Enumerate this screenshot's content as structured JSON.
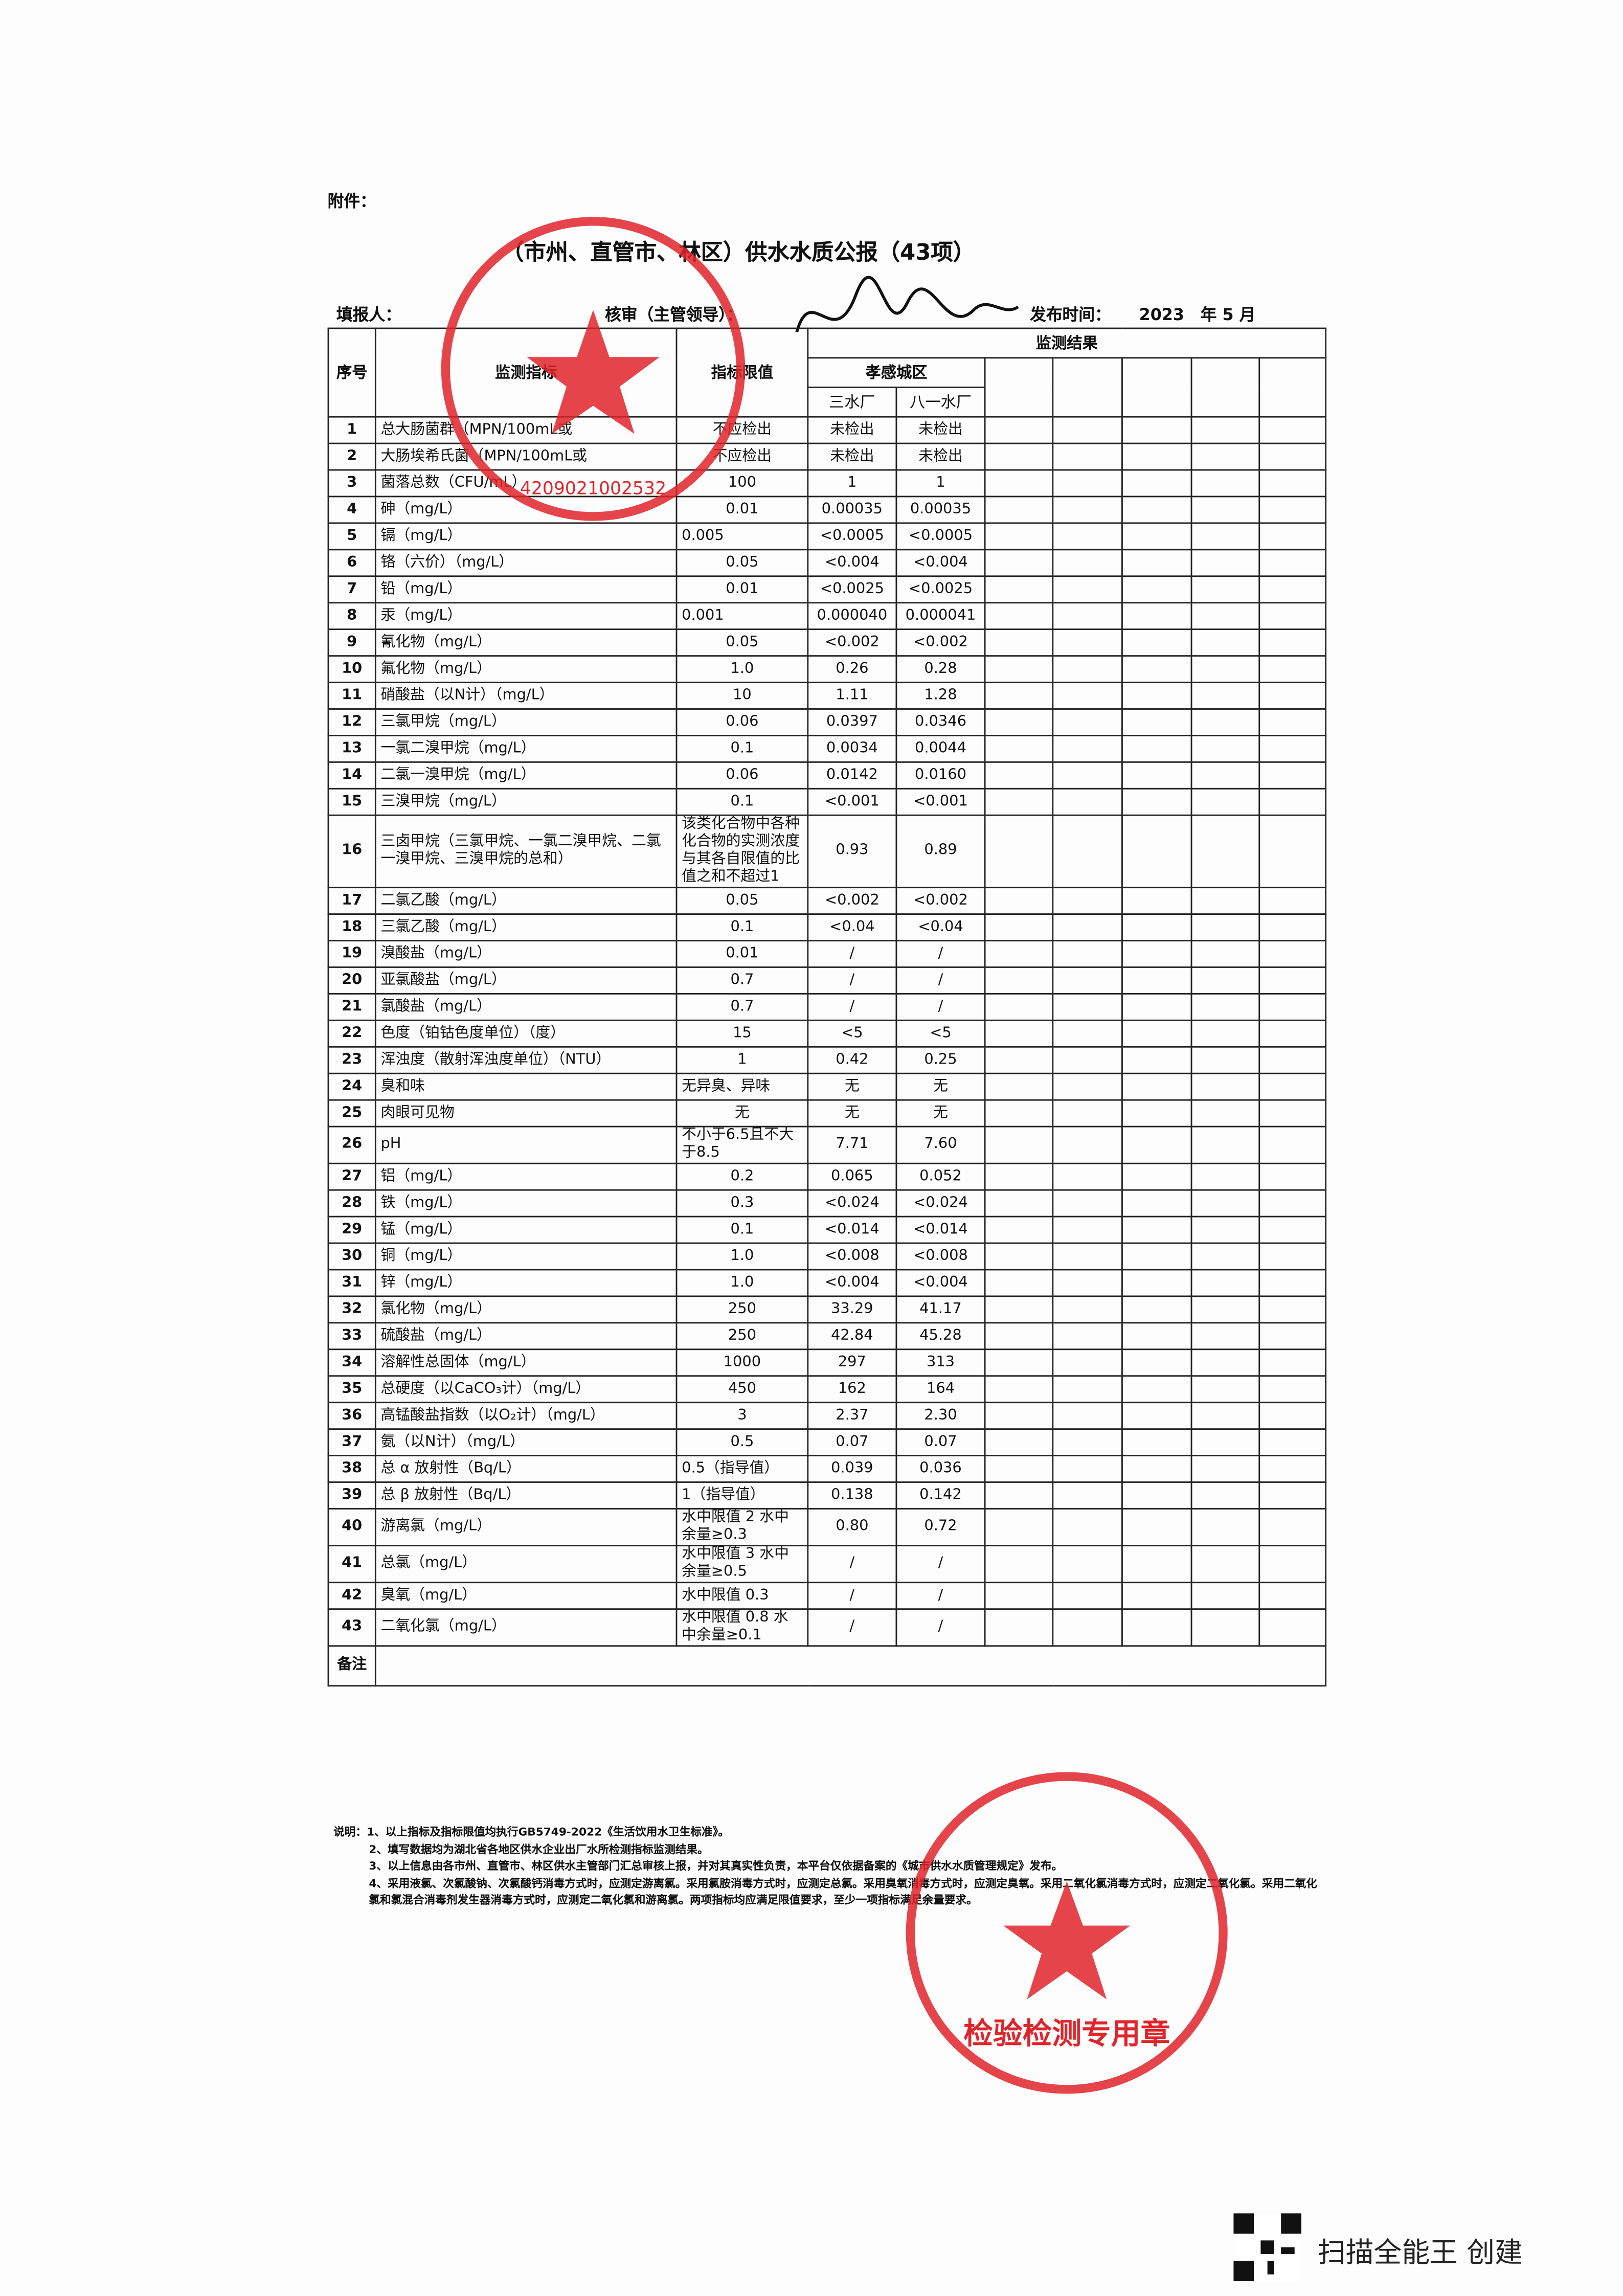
{
  "header": {
    "attachment": "附件：",
    "title": "（市州、直管市、林区）供水水质公报（43项）",
    "filler": "填报人：",
    "reviewer": "核审（主管领导）：",
    "publish_label": "发布时间：",
    "publish_date": "2023　年 5 月"
  },
  "table": {
    "headers": {
      "no": "序号",
      "indicator": "监测指标",
      "limit": "指标限值",
      "results": "监测结果",
      "area": "孝感城区",
      "plant1": "三水厂",
      "plant2": "八一水厂"
    },
    "rows": [
      [
        "1",
        "总大肠菌群（MPN/100mL或",
        "不应检出",
        "未检出",
        "未检出"
      ],
      [
        "2",
        "大肠埃希氏菌（MPN/100mL或",
        "不应检出",
        "未检出",
        "未检出"
      ],
      [
        "3",
        "菌落总数（CFU/mL）",
        "100",
        "1",
        "1"
      ],
      [
        "4",
        "砷（mg/L）",
        "0.01",
        "0.00035",
        "0.00035"
      ],
      [
        "5",
        "镉（mg/L）",
        "0.005",
        "<0.0005",
        "<0.0005"
      ],
      [
        "6",
        "铬（六价）（mg/L）",
        "0.05",
        "<0.004",
        "<0.004"
      ],
      [
        "7",
        "铅（mg/L）",
        "0.01",
        "<0.0025",
        "<0.0025"
      ],
      [
        "8",
        "汞（mg/L）",
        "0.001",
        "0.000040",
        "0.000041"
      ],
      [
        "9",
        "氰化物（mg/L）",
        "0.05",
        "<0.002",
        "<0.002"
      ],
      [
        "10",
        "氟化物（mg/L）",
        "1.0",
        "0.26",
        "0.28"
      ],
      [
        "11",
        "硝酸盐（以N计）（mg/L）",
        "10",
        "1.11",
        "1.28"
      ],
      [
        "12",
        "三氯甲烷（mg/L）",
        "0.06",
        "0.0397",
        "0.0346"
      ],
      [
        "13",
        "一氯二溴甲烷（mg/L）",
        "0.1",
        "0.0034",
        "0.0044"
      ],
      [
        "14",
        "二氯一溴甲烷（mg/L）",
        "0.06",
        "0.0142",
        "0.0160"
      ],
      [
        "15",
        "三溴甲烷（mg/L）",
        "0.1",
        "<0.001",
        "<0.001"
      ],
      [
        "16",
        "三卤甲烷（三氯甲烷、一氯二溴甲烷、二氯一溴甲烷、三溴甲烷的总和）",
        "该类化合物中各种化合物的实测浓度与其各自限值的比值之和不超过1",
        "0.93",
        "0.89"
      ],
      [
        "17",
        "二氯乙酸（mg/L）",
        "0.05",
        "<0.002",
        "<0.002"
      ],
      [
        "18",
        "三氯乙酸（mg/L）",
        "0.1",
        "<0.04",
        "<0.04"
      ],
      [
        "19",
        "溴酸盐（mg/L）",
        "0.01",
        "/",
        "/"
      ],
      [
        "20",
        "亚氯酸盐（mg/L）",
        "0.7",
        "/",
        "/"
      ],
      [
        "21",
        "氯酸盐（mg/L）",
        "0.7",
        "/",
        "/"
      ],
      [
        "22",
        "色度（铂钴色度单位）（度）",
        "15",
        "<5",
        "<5"
      ],
      [
        "23",
        "浑浊度（散射浑浊度单位）（NTU）",
        "1",
        "0.42",
        "0.25"
      ],
      [
        "24",
        "臭和味",
        "无异臭、异味",
        "无",
        "无"
      ],
      [
        "25",
        "肉眼可见物",
        "无",
        "无",
        "无"
      ],
      [
        "26",
        "pH",
        "不小于6.5且不大于8.5",
        "7.71",
        "7.60"
      ],
      [
        "27",
        "铝（mg/L）",
        "0.2",
        "0.065",
        "0.052"
      ],
      [
        "28",
        "铁（mg/L）",
        "0.3",
        "<0.024",
        "<0.024"
      ],
      [
        "29",
        "锰（mg/L）",
        "0.1",
        "<0.014",
        "<0.014"
      ],
      [
        "30",
        "铜（mg/L）",
        "1.0",
        "<0.008",
        "<0.008"
      ],
      [
        "31",
        "锌（mg/L）",
        "1.0",
        "<0.004",
        "<0.004"
      ],
      [
        "32",
        "氯化物（mg/L）",
        "250",
        "33.29",
        "41.17"
      ],
      [
        "33",
        "硫酸盐（mg/L）",
        "250",
        "42.84",
        "45.28"
      ],
      [
        "34",
        "溶解性总固体（mg/L）",
        "1000",
        "297",
        "313"
      ],
      [
        "35",
        "总硬度（以CaCO₃计）（mg/L）",
        "450",
        "162",
        "164"
      ],
      [
        "36",
        "高锰酸盐指数（以O₂计）（mg/L）",
        "3",
        "2.37",
        "2.30"
      ],
      [
        "37",
        "氨（以N计）（mg/L）",
        "0.5",
        "0.07",
        "0.07"
      ],
      [
        "38",
        "总 α 放射性（Bq/L）",
        "0.5（指导值）",
        "0.039",
        "0.036"
      ],
      [
        "39",
        "总 β 放射性（Bq/L）",
        "1（指导值）",
        "0.138",
        "0.142"
      ],
      [
        "40",
        "游离氯（mg/L）",
        "水中限值 2 水中余量≥0.3",
        "0.80",
        "0.72"
      ],
      [
        "41",
        "总氯（mg/L）",
        "水中限值 3 水中余量≥0.5",
        "/",
        "/"
      ],
      [
        "42",
        "臭氧（mg/L）",
        "水中限值 0.3",
        "/",
        "/"
      ],
      [
        "43",
        "二氧化氯（mg/L）",
        "水中限值 0.8 水中余量≥0.1",
        "/",
        "/"
      ]
    ],
    "remark": "备注"
  },
  "notes": [
    "说明：1、以上指标及指标限值均执行GB5749-2022《生活饮用水卫生标准》。",
    "2、填写数据均为湖北省各地区供水企业出厂水所检测指标监测结果。",
    "3、以上信息由各市州、直管市、林区供水主管部门汇总审核上报，并对其真实性负责，本平台仅依据备案的《城市供水水质管理规定》发布。",
    "4、采用液氯、次氯酸钠、次氯酸钙消毒方式时，应测定游离氯。采用氯胺消毒方式时，应测定总氯。采用臭氧消毒方式时，应测定臭氧。采用二氧化氯消毒方式时，应测定二氧化氯。采用二氧化氯和氯混合消毒剂发生器消毒方式时，应测定二氧化氯和游离氯。两项指标均应满足限值要求，至少一项指标满足余量要求。"
  ],
  "stamps": [
    "4209021002532",
    "检验检测专用章"
  ],
  "footer": "扫描全能王 创建"
}
